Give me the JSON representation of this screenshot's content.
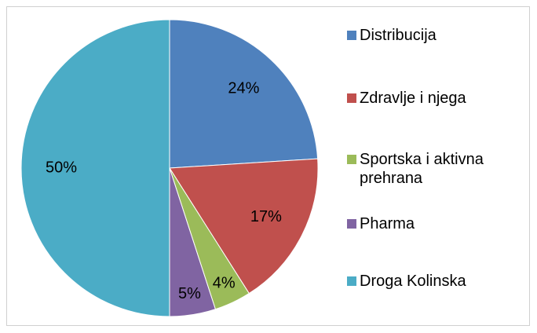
{
  "chart_data": {
    "type": "pie",
    "categories": [
      "Distribucija",
      "Zdravlje i njega",
      "Sportska i aktivna prehrana",
      "Pharma",
      "Droga Kolinska"
    ],
    "values": [
      24,
      17,
      4,
      5,
      50
    ],
    "value_labels": [
      "24%",
      "17%",
      "4%",
      "5%",
      "50%"
    ],
    "colors": [
      "#4f81bd",
      "#c0504d",
      "#9bbb59",
      "#8064a2",
      "#4bacc6"
    ],
    "legend": "right"
  }
}
